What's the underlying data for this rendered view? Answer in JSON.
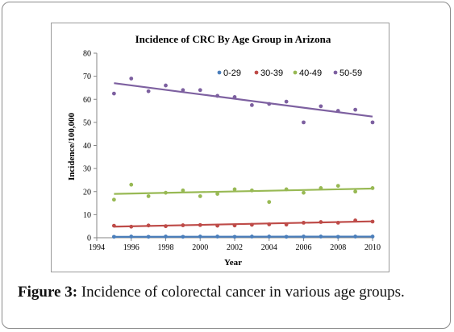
{
  "chart_data": {
    "type": "scatter",
    "title": "Incidence of CRC By Age Group in Arizona",
    "xlabel": "Year",
    "ylabel": "Incidence/100,000",
    "xlim": [
      1994,
      2010
    ],
    "ylim": [
      0,
      80
    ],
    "x_ticks": [
      1994,
      1996,
      1998,
      2000,
      2002,
      2004,
      2006,
      2008,
      2010
    ],
    "y_ticks": [
      0,
      10,
      20,
      30,
      40,
      50,
      60,
      70,
      80
    ],
    "x": [
      1995,
      1996,
      1997,
      1998,
      1999,
      2000,
      2001,
      2002,
      2003,
      2004,
      2005,
      2006,
      2007,
      2008,
      2009,
      2010
    ],
    "grid": false,
    "legend_position": "top-right",
    "trendlines": true,
    "series": [
      {
        "name": "0-29",
        "color": "#4a7ebb",
        "values": [
          0.4,
          0.5,
          0.4,
          0.5,
          0.4,
          0.5,
          0.5,
          0.4,
          0.5,
          0.5,
          0.4,
          0.5,
          0.5,
          0.4,
          0.5,
          0.5
        ],
        "trend": [
          0.4,
          0.5
        ]
      },
      {
        "name": "30-39",
        "color": "#be4b48",
        "values": [
          5.2,
          4.8,
          5.3,
          5.0,
          5.4,
          5.5,
          5.2,
          5.3,
          5.6,
          5.8,
          5.7,
          6.5,
          6.8,
          6.5,
          7.5,
          7.0
        ],
        "trend": [
          4.8,
          7.1
        ]
      },
      {
        "name": "40-49",
        "color": "#98b954",
        "values": [
          16.5,
          23.0,
          18.0,
          19.5,
          20.5,
          18.0,
          19.0,
          21.0,
          20.5,
          15.5,
          21.0,
          19.5,
          21.5,
          22.5,
          20.0,
          21.5
        ],
        "trend": [
          19.0,
          21.3
        ]
      },
      {
        "name": "50-59",
        "color": "#7d60a0",
        "values": [
          62.5,
          69.0,
          63.5,
          66.0,
          64.0,
          64.0,
          61.5,
          61.0,
          57.5,
          58.0,
          59.0,
          50.0,
          57.0,
          55.0,
          55.5,
          50.0
        ],
        "trend": [
          67.0,
          52.5
        ]
      }
    ]
  },
  "caption": {
    "label": "Figure 3:",
    "text": " Incidence of colorectal cancer in various age groups."
  }
}
